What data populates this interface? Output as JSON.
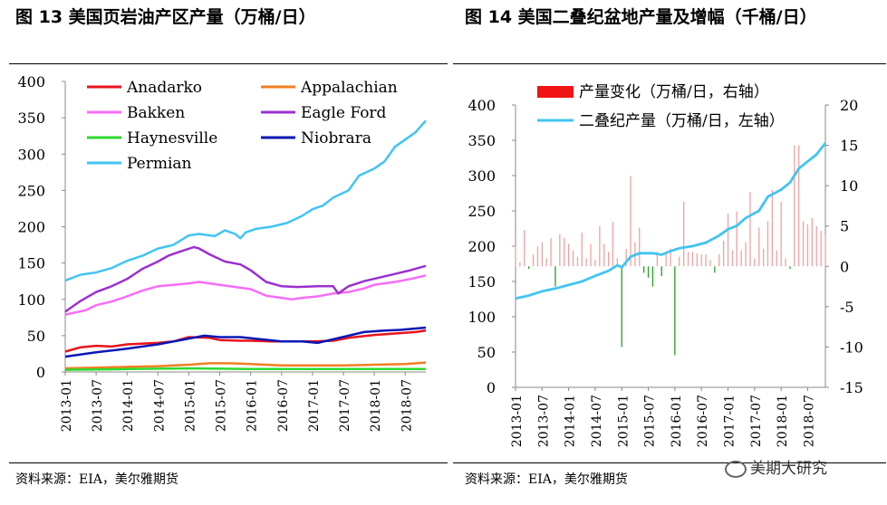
{
  "figures": {
    "left_title": "图 13    美国页岩油产区产量（万桶/日）",
    "right_title": "图 14    美国二叠纪盆地产量及增幅（千桶/日）",
    "left_source": "资料来源：EIA，美尔雅期货",
    "right_source": "资料来源：EIA，美尔雅期货",
    "watermark": "美期大研究"
  },
  "chart_data": [
    {
      "type": "line",
      "title": "美国页岩油产区产量（万桶/日）",
      "ylim": [
        0,
        400
      ],
      "yticks": [
        0,
        50,
        100,
        150,
        200,
        250,
        300,
        350,
        400
      ],
      "x_tick_labels": [
        "2013-01",
        "2013-07",
        "2014-01",
        "2014-07",
        "2015-01",
        "2015-07",
        "2016-01",
        "2016-07",
        "2017-01",
        "2017-07",
        "2018-01",
        "2018-07"
      ],
      "x_start": "2013-01",
      "x_end": "2018-11",
      "grid": false,
      "legend_position": "top-left",
      "series": [
        {
          "name": "Anadarko",
          "color": "#e8141b",
          "values": [
            [
              0,
              28
            ],
            [
              3,
              34
            ],
            [
              6,
              36
            ],
            [
              9,
              35
            ],
            [
              12,
              38
            ],
            [
              18,
              40
            ],
            [
              21,
              42
            ],
            [
              24,
              48
            ],
            [
              28,
              47
            ],
            [
              30,
              44
            ],
            [
              34,
              43
            ],
            [
              36,
              43
            ],
            [
              40,
              42
            ],
            [
              42,
              42
            ],
            [
              48,
              42
            ],
            [
              52,
              43
            ],
            [
              55,
              47
            ],
            [
              60,
              51
            ],
            [
              64,
              53
            ],
            [
              68,
              55
            ],
            [
              70,
              57
            ]
          ]
        },
        {
          "name": "Appalachian",
          "color": "#f07f22",
          "values": [
            [
              0,
              5
            ],
            [
              6,
              6
            ],
            [
              12,
              7
            ],
            [
              18,
              8
            ],
            [
              24,
              10
            ],
            [
              28,
              12
            ],
            [
              32,
              12
            ],
            [
              36,
              11
            ],
            [
              42,
              9
            ],
            [
              48,
              9
            ],
            [
              54,
              9
            ],
            [
              60,
              10
            ],
            [
              66,
              11
            ],
            [
              70,
              13
            ]
          ]
        },
        {
          "name": "Bakken",
          "color": "#f76cf7",
          "values": [
            [
              0,
              79
            ],
            [
              4,
              85
            ],
            [
              6,
              92
            ],
            [
              9,
              97
            ],
            [
              12,
              104
            ],
            [
              15,
              112
            ],
            [
              18,
              118
            ],
            [
              21,
              120
            ],
            [
              24,
              122
            ],
            [
              26,
              124
            ],
            [
              30,
              120
            ],
            [
              33,
              117
            ],
            [
              36,
              114
            ],
            [
              39,
              105
            ],
            [
              42,
              102
            ],
            [
              44,
              100
            ],
            [
              46,
              102
            ],
            [
              49,
              104
            ],
            [
              52,
              108
            ],
            [
              55,
              110
            ],
            [
              58,
              115
            ],
            [
              60,
              120
            ],
            [
              64,
              124
            ],
            [
              67,
              128
            ],
            [
              70,
              133
            ]
          ]
        },
        {
          "name": "Eagle Ford",
          "color": "#9b30d0",
          "values": [
            [
              0,
              83
            ],
            [
              3,
              98
            ],
            [
              6,
              110
            ],
            [
              9,
              118
            ],
            [
              12,
              128
            ],
            [
              15,
              142
            ],
            [
              18,
              152
            ],
            [
              20,
              160
            ],
            [
              22,
              165
            ],
            [
              25,
              172
            ],
            [
              26,
              170
            ],
            [
              28,
              162
            ],
            [
              31,
              152
            ],
            [
              34,
              148
            ],
            [
              36,
              140
            ],
            [
              39,
              124
            ],
            [
              42,
              118
            ],
            [
              45,
              117
            ],
            [
              49,
              118
            ],
            [
              52,
              118
            ],
            [
              53,
              108
            ],
            [
              55,
              118
            ],
            [
              58,
              125
            ],
            [
              61,
              130
            ],
            [
              64,
              135
            ],
            [
              67,
              140
            ],
            [
              70,
              146
            ]
          ]
        },
        {
          "name": "Haynesville",
          "color": "#2ddb2d",
          "values": [
            [
              0,
              3
            ],
            [
              12,
              4
            ],
            [
              24,
              5
            ],
            [
              36,
              4
            ],
            [
              48,
              4
            ],
            [
              60,
              4
            ],
            [
              70,
              4
            ]
          ]
        },
        {
          "name": "Niobrara",
          "color": "#0a17b5",
          "values": [
            [
              0,
              21
            ],
            [
              6,
              27
            ],
            [
              12,
              32
            ],
            [
              18,
              38
            ],
            [
              24,
              46
            ],
            [
              27,
              50
            ],
            [
              30,
              48
            ],
            [
              34,
              48
            ],
            [
              38,
              45
            ],
            [
              42,
              42
            ],
            [
              46,
              42
            ],
            [
              49,
              40
            ],
            [
              52,
              45
            ],
            [
              55,
              50
            ],
            [
              58,
              55
            ],
            [
              62,
              57
            ],
            [
              65,
              58
            ],
            [
              70,
              61
            ]
          ]
        },
        {
          "name": "Permian",
          "color": "#41c4f2",
          "values": [
            [
              0,
              126
            ],
            [
              3,
              134
            ],
            [
              6,
              137
            ],
            [
              9,
              143
            ],
            [
              12,
              153
            ],
            [
              15,
              160
            ],
            [
              18,
              170
            ],
            [
              21,
              175
            ],
            [
              24,
              188
            ],
            [
              26,
              190
            ],
            [
              29,
              187
            ],
            [
              31,
              195
            ],
            [
              33,
              190
            ],
            [
              34,
              184
            ],
            [
              35,
              192
            ],
            [
              37,
              197
            ],
            [
              40,
              200
            ],
            [
              43,
              205
            ],
            [
              46,
              215
            ],
            [
              48,
              224
            ],
            [
              50,
              229
            ],
            [
              52,
              240
            ],
            [
              55,
              250
            ],
            [
              57,
              270
            ],
            [
              60,
              280
            ],
            [
              62,
              290
            ],
            [
              64,
              310
            ],
            [
              66,
              320
            ],
            [
              68,
              330
            ],
            [
              70,
              346
            ]
          ]
        }
      ]
    },
    {
      "type": "bar",
      "title": "美国二叠纪盆地产量及增幅（千桶/日）",
      "x_tick_labels": [
        "2013-01",
        "2013-07",
        "2014-01",
        "2014-07",
        "2015-01",
        "2015-07",
        "2016-01",
        "2016-07",
        "2017-01",
        "2017-07",
        "2018-01",
        "2018-07"
      ],
      "x_start": "2013-01",
      "x_end": "2018-11",
      "grid": false,
      "legend_position": "top",
      "y_left": {
        "ylim": [
          0,
          400
        ],
        "ticks": [
          0,
          50,
          100,
          150,
          200,
          250,
          300,
          350,
          400
        ]
      },
      "y_right": {
        "ylim": [
          -15,
          20
        ],
        "ticks": [
          -15,
          -10,
          -5,
          0,
          5,
          10,
          15,
          20
        ]
      },
      "series": [
        {
          "name": "产量变化（万桶/日，右轴）",
          "axis": "right",
          "type": "bar",
          "colors": {
            "positive": "#f1a1a1",
            "negative": "#21a021",
            "legend": "#f01414"
          },
          "values": [
            2.5,
            0.5,
            4.5,
            -0.3,
            1.5,
            2.5,
            3.0,
            1.0,
            3.5,
            -2.5,
            4.0,
            3.5,
            2.8,
            2.0,
            1.2,
            4.2,
            1.0,
            2.8,
            0.8,
            5.0,
            2.8,
            1.8,
            5.5,
            1.0,
            -10.0,
            2.2,
            11.2,
            3.0,
            4.8,
            -0.8,
            -1.4,
            -2.5,
            1.8,
            -1.2,
            1.6,
            2.2,
            -11.0,
            1.2,
            8.0,
            1.8,
            1.8,
            1.6,
            1.5,
            1.5,
            0.8,
            -0.8,
            1.5,
            3.2,
            6.5,
            2.0,
            6.8,
            2.0,
            3.0,
            9.2,
            1.0,
            4.8,
            2.2,
            5.6,
            9.5,
            2.0,
            8.0,
            1.0,
            -0.3,
            15.0,
            15.0,
            5.6,
            5.2,
            6.0,
            5.0,
            4.4,
            4.0
          ]
        },
        {
          "name": "二叠纪产量（万桶/日，左轴）",
          "axis": "left",
          "type": "line",
          "color": "#41c4f2",
          "values": [
            [
              0,
              126
            ],
            [
              3,
              130
            ],
            [
              6,
              136
            ],
            [
              9,
              140
            ],
            [
              12,
              145
            ],
            [
              15,
              150
            ],
            [
              18,
              158
            ],
            [
              21,
              165
            ],
            [
              23,
              173
            ],
            [
              24,
              170
            ],
            [
              26,
              185
            ],
            [
              28,
              190
            ],
            [
              31,
              190
            ],
            [
              33,
              188
            ],
            [
              35,
              193
            ],
            [
              37,
              197
            ],
            [
              40,
              200
            ],
            [
              43,
              205
            ],
            [
              46,
              215
            ],
            [
              48,
              224
            ],
            [
              50,
              229
            ],
            [
              52,
              240
            ],
            [
              55,
              250
            ],
            [
              57,
              270
            ],
            [
              60,
              280
            ],
            [
              62,
              290
            ],
            [
              64,
              310
            ],
            [
              66,
              320
            ],
            [
              68,
              330
            ],
            [
              70,
              346
            ]
          ]
        }
      ]
    }
  ]
}
